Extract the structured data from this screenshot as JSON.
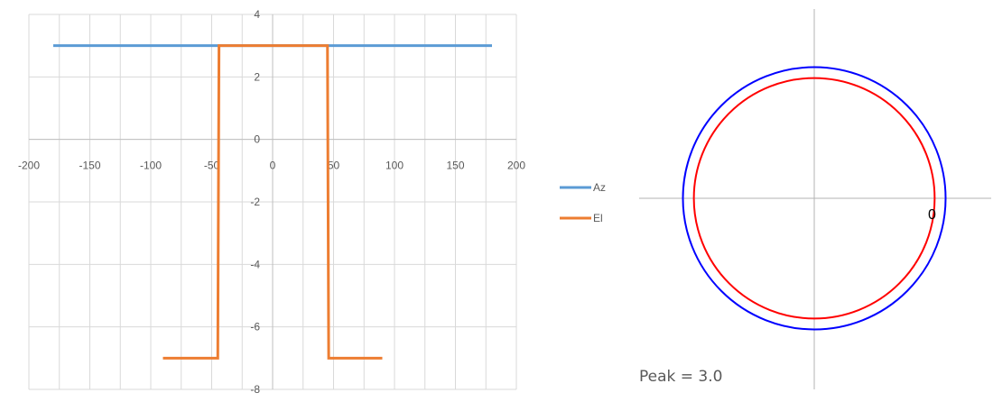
{
  "chart_data": [
    {
      "type": "line",
      "xlim": [
        -200,
        200
      ],
      "ylim": [
        -8,
        4
      ],
      "x_ticks": [
        "-200",
        "-150",
        "-100",
        "-50",
        "0",
        "50",
        "100",
        "150",
        "200"
      ],
      "y_ticks": [
        "4",
        "2",
        "0",
        "-2",
        "-4",
        "-6",
        "-8"
      ],
      "grid": true,
      "legend_position": "right",
      "series": [
        {
          "name": "Az",
          "color": "#5b9bd5",
          "points": [
            [
              -180,
              3
            ],
            [
              180,
              3
            ]
          ]
        },
        {
          "name": "El",
          "color": "#ed7d31",
          "points": [
            [
              -90,
              -7
            ],
            [
              -45,
              -7
            ],
            [
              -44,
              3
            ],
            [
              45,
              3
            ],
            [
              46,
              -7
            ],
            [
              90,
              -7
            ]
          ]
        }
      ]
    },
    {
      "type": "polar",
      "angle_label": "0",
      "peak_text": "Peak = 3.0",
      "series": [
        {
          "name": "Az",
          "color": "#0000ff",
          "radius": 3.0
        },
        {
          "name": "El",
          "color": "#ff0000",
          "radius": 2.75
        }
      ]
    }
  ]
}
